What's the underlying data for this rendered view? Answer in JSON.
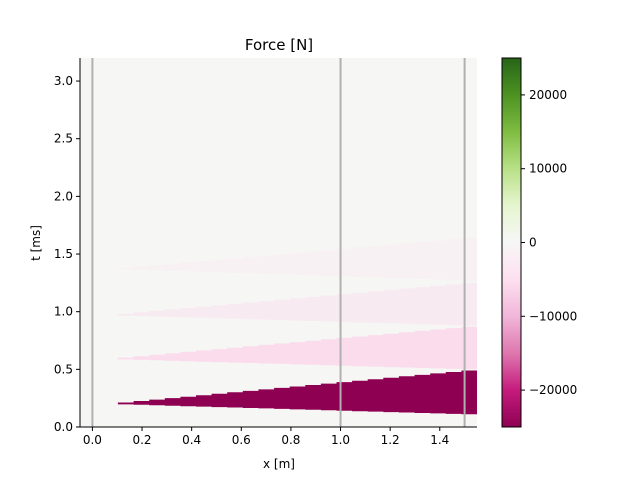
{
  "chart_data": {
    "type": "heatmap",
    "title": "Force [N]",
    "xlabel": "x [m]",
    "ylabel": "t [ms]",
    "xlim": [
      -0.05,
      1.55
    ],
    "ylim": [
      0.0,
      3.2
    ],
    "x_ticks": [
      0.0,
      0.2,
      0.4,
      0.6,
      0.8,
      1.0,
      1.2,
      1.4
    ],
    "x_tick_labels": [
      "0.0",
      "0.2",
      "0.4",
      "0.6",
      "0.8",
      "1.0",
      "1.2",
      "1.4"
    ],
    "y_ticks": [
      0.0,
      0.5,
      1.0,
      1.5,
      2.0,
      2.5,
      3.0
    ],
    "y_tick_labels": [
      "0.0",
      "0.5",
      "1.0",
      "1.5",
      "2.0",
      "2.5",
      "3.0"
    ],
    "colormap": "PiYG",
    "colorbar": {
      "range": [
        -25000,
        25000
      ],
      "ticks": [
        -20000,
        -10000,
        0,
        10000,
        20000
      ],
      "tick_labels": [
        "−20000",
        "−10000",
        "0",
        "10000",
        "20000"
      ]
    },
    "vertical_lines": [
      0.0,
      1.0,
      1.5
    ],
    "vertical_line_color": "#b0b0b0",
    "background_color": "#f6f6f5",
    "bands": [
      {
        "name": "band-1",
        "value": -24000,
        "color": "#8e0152",
        "x": [
          0.04,
          1.55
        ],
        "t_start": [
          0.2,
          0.49
        ],
        "t_end": [
          0.2,
          0.11
        ]
      },
      {
        "name": "band-2",
        "value": -5500,
        "color": "#fadcec",
        "x": [
          0.04,
          1.55
        ],
        "t_start": [
          0.59,
          0.87
        ],
        "t_end": [
          0.59,
          0.5
        ]
      },
      {
        "name": "band-3",
        "value": -1800,
        "color": "#f8eaf1",
        "x": [
          0.04,
          1.55
        ],
        "t_start": [
          0.97,
          1.25
        ],
        "t_end": [
          0.97,
          0.88
        ]
      },
      {
        "name": "band-4",
        "value": -600,
        "color": "#f8f1f4",
        "x": [
          0.04,
          1.55
        ],
        "t_start": [
          1.37,
          1.64
        ],
        "t_end": [
          1.37,
          1.27
        ]
      }
    ]
  }
}
